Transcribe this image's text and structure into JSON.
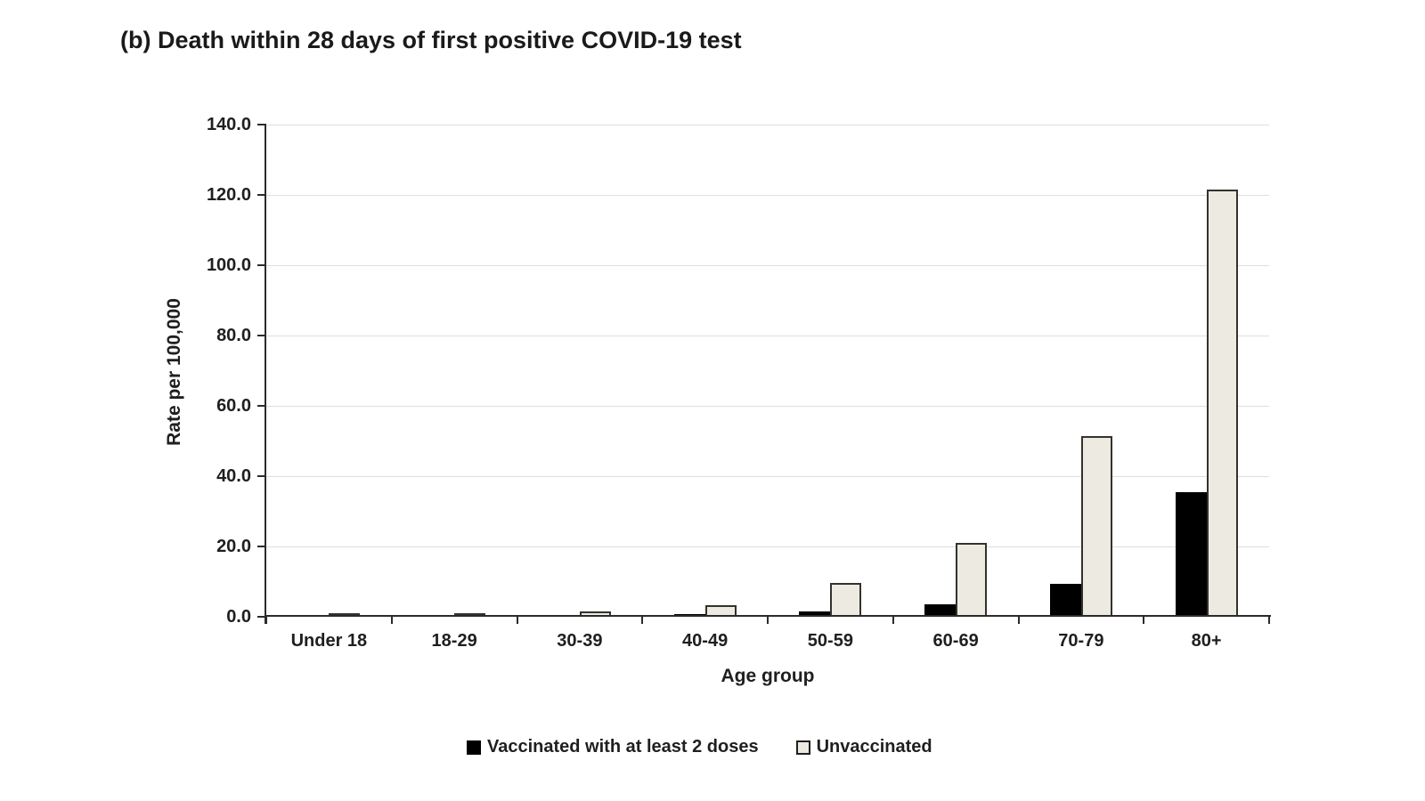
{
  "chart_data": {
    "type": "bar",
    "title": "(b) Death within 28 days of first positive COVID-19 test",
    "xlabel": "Age group",
    "ylabel": "Rate per 100,000",
    "categories": [
      "Under 18",
      "18-29",
      "30-39",
      "40-49",
      "50-59",
      "60-69",
      "70-79",
      "80+"
    ],
    "series": [
      {
        "name": "Vaccinated with at least 2 doses",
        "color": "#000000",
        "values": [
          0.1,
          0.2,
          0.3,
          0.8,
          1.4,
          3.6,
          9.3,
          35.5
        ]
      },
      {
        "name": "Unvaccinated",
        "color": "#EDEBE1",
        "border_color": "#33322C",
        "values": [
          0.3,
          0.7,
          1.4,
          3.2,
          9.6,
          21.0,
          51.4,
          121.6
        ]
      }
    ],
    "ylim": [
      0,
      140
    ],
    "ytick_step": 20,
    "yticks": [
      "0.0",
      "20.0",
      "40.0",
      "60.0",
      "80.0",
      "100.0",
      "120.0",
      "140.0"
    ],
    "grid": "horizontal",
    "legend_position": "bottom",
    "colors": {
      "gridline": "#DEDEDE",
      "axis": "#2B2B2B",
      "text": "#1F1F1F",
      "background": "#FFFFFF"
    }
  }
}
